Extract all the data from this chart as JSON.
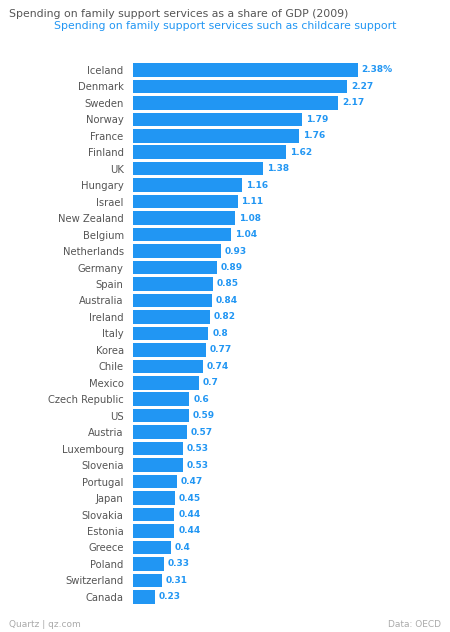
{
  "title": "Spending on family support services as a share of GDP (2009)",
  "subtitle": "Spending on family support services such as childcare support",
  "footer_left": "Quartz | qz.com",
  "footer_right": "Data: OECD",
  "categories": [
    "Iceland",
    "Denmark",
    "Sweden",
    "Norway",
    "France",
    "Finland",
    "UK",
    "Hungary",
    "Israel",
    "New Zealand",
    "Belgium",
    "Netherlands",
    "Germany",
    "Spain",
    "Australia",
    "Ireland",
    "Italy",
    "Korea",
    "Chile",
    "Mexico",
    "Czech Republic",
    "US",
    "Austria",
    "Luxembourg",
    "Slovenia",
    "Portugal",
    "Japan",
    "Slovakia",
    "Estonia",
    "Greece",
    "Poland",
    "Switzerland",
    "Canada"
  ],
  "values": [
    2.38,
    2.27,
    2.17,
    1.79,
    1.76,
    1.62,
    1.38,
    1.16,
    1.11,
    1.08,
    1.04,
    0.93,
    0.89,
    0.85,
    0.84,
    0.82,
    0.8,
    0.77,
    0.74,
    0.7,
    0.6,
    0.59,
    0.57,
    0.53,
    0.53,
    0.47,
    0.45,
    0.44,
    0.44,
    0.4,
    0.33,
    0.31,
    0.23
  ],
  "bar_color": "#2196f3",
  "title_color": "#555555",
  "subtitle_color": "#2196f3",
  "value_color": "#2196f3",
  "footer_color": "#aaaaaa",
  "background_color": "#ffffff",
  "bar_height": 0.82,
  "first_value_suffix": "%"
}
